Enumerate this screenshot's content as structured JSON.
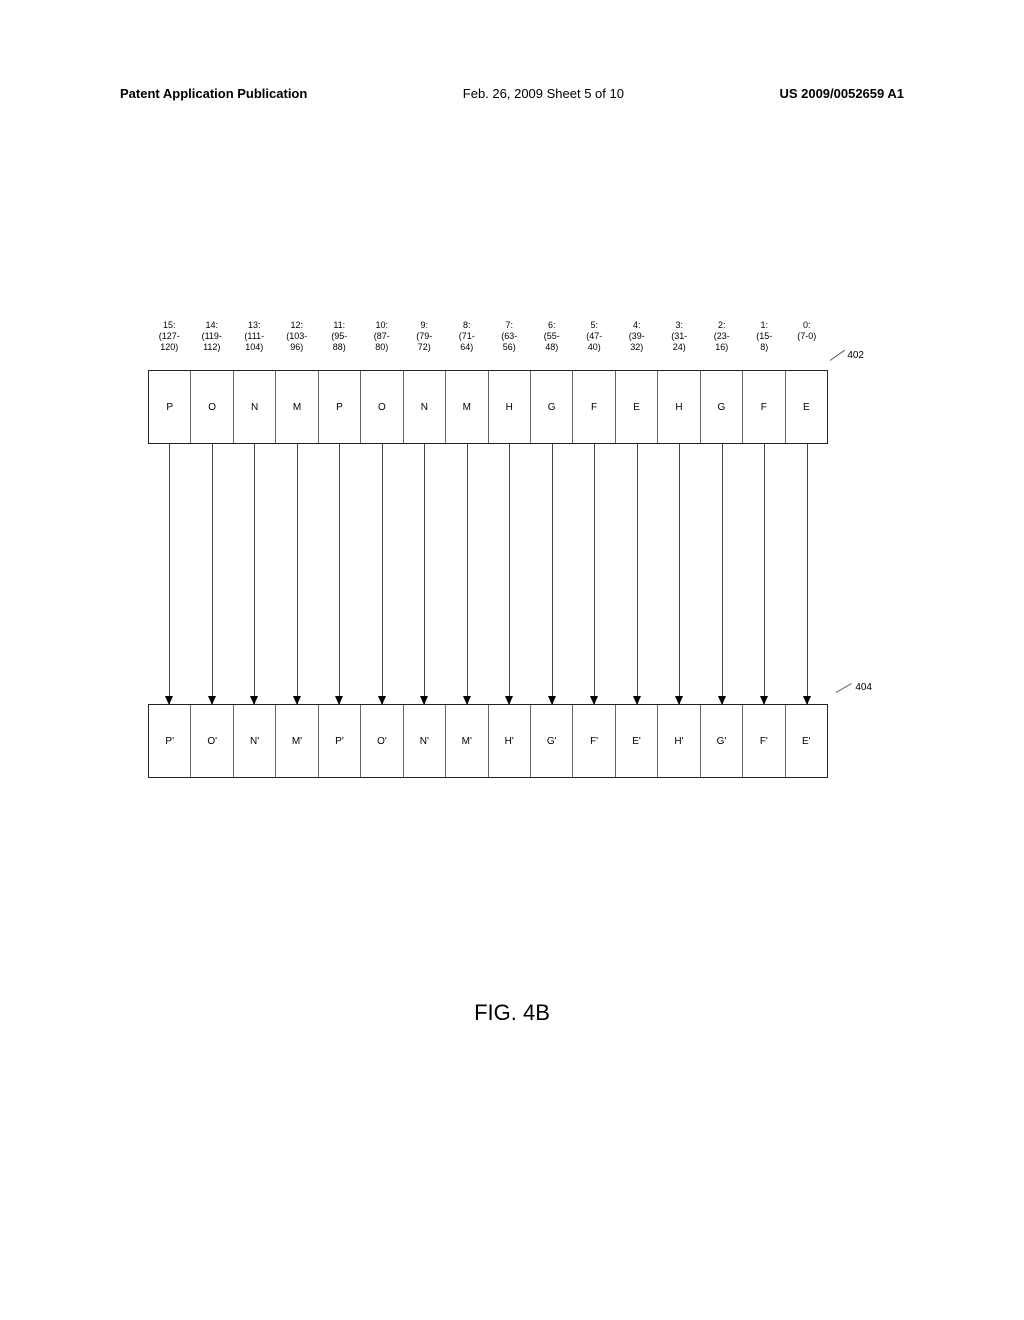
{
  "header": {
    "left": "Patent Application Publication",
    "center": "Feb. 26, 2009  Sheet 5 of 10",
    "right": "US 2009/0052659 A1"
  },
  "bit_labels": [
    "15:\n(127-\n120)",
    "14:\n(119-\n112)",
    "13:\n(111-\n104)",
    "12:\n(103-\n96)",
    "11:\n(95-\n88)",
    "10:\n(87-\n80)",
    "9:\n(79-\n72)",
    "8:\n(71-\n64)",
    "7:\n(63-\n56)",
    "6:\n(55-\n48)",
    "5:\n(47-\n40)",
    "4:\n(39-\n32)",
    "3:\n(31-\n24)",
    "2:\n(23-\n16)",
    "1:\n(15-\n8)",
    "0:\n(7-0)"
  ],
  "register_top": {
    "cells": [
      "P",
      "O",
      "N",
      "M",
      "P",
      "O",
      "N",
      "M",
      "H",
      "G",
      "F",
      "E",
      "H",
      "G",
      "F",
      "E"
    ],
    "ref": "402"
  },
  "register_bottom": {
    "cells": [
      "P'",
      "O'",
      "N'",
      "M'",
      "P'",
      "O'",
      "N'",
      "M'",
      "H'",
      "G'",
      "F'",
      "E'",
      "H'",
      "G'",
      "F'",
      "E'"
    ],
    "ref": "404"
  },
  "figure_caption": "FIG. 4B",
  "colors": {
    "background": "#ffffff",
    "text": "#000000",
    "border": "#222222",
    "cell_border": "#666666",
    "arrow": "#444444"
  }
}
